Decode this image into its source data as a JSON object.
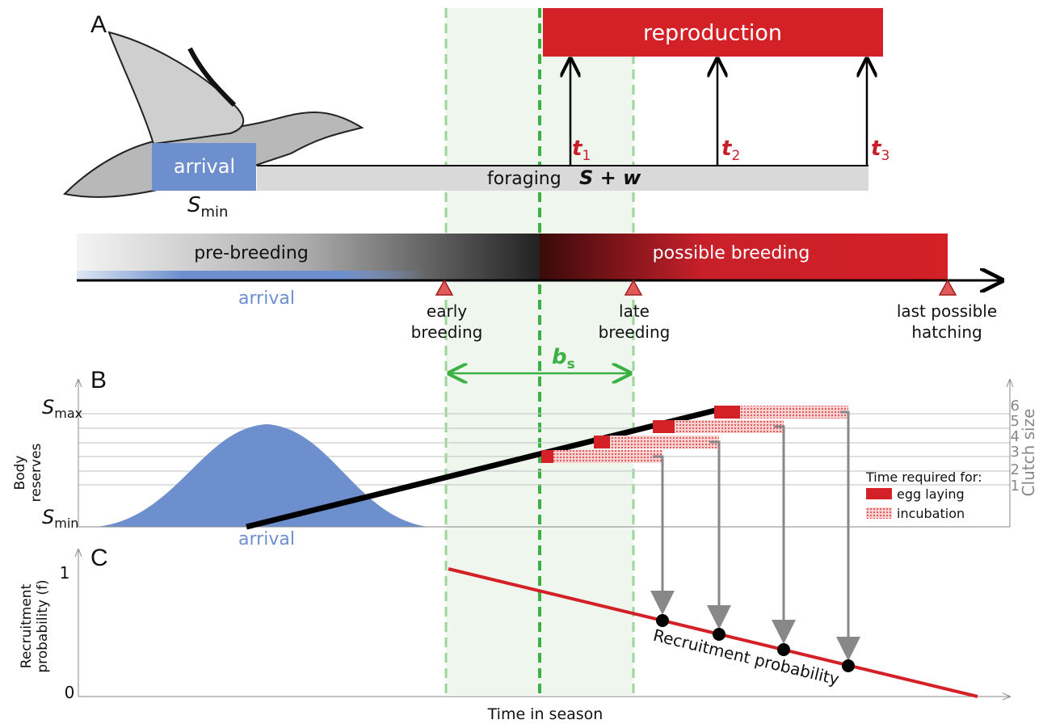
{
  "panel_a": {
    "label": "A",
    "reproduction": "reproduction",
    "times": [
      {
        "base": "t",
        "sub": "1"
      },
      {
        "base": "t",
        "sub": "2"
      },
      {
        "base": "t",
        "sub": "3"
      }
    ],
    "arrival_box": "arrival",
    "foraging": "foraging",
    "gain": "S + w",
    "s_min": {
      "base": "S",
      "sub": "min"
    },
    "phases": [
      "pre-breeding",
      "possible breeding"
    ],
    "arrival_band": "arrival",
    "markers": [
      [
        "early",
        "breeding"
      ],
      [
        "late",
        "breeding"
      ],
      [
        "last possible",
        "hatching"
      ]
    ],
    "b_s": {
      "base": "b",
      "sub": "s"
    }
  },
  "panel_b": {
    "label": "B",
    "s_max": {
      "base": "S",
      "sub": "max"
    },
    "s_min": {
      "base": "S",
      "sub": "min"
    },
    "y_label": [
      "Body",
      "reserves"
    ],
    "clutch_sizes": [
      "6",
      "5",
      "4",
      "3",
      "2",
      "1"
    ],
    "clutch_label": "Clutch size",
    "legend_title": "Time required for:",
    "legend": [
      "egg laying",
      "incubation"
    ],
    "arrival": "arrival"
  },
  "panel_c": {
    "label": "C",
    "y_top": "1",
    "y_bottom": "0",
    "y_label": [
      "Recruitment",
      "probability (f)"
    ],
    "line_label": "Recruitment probability"
  },
  "x_label": "Time in season"
}
